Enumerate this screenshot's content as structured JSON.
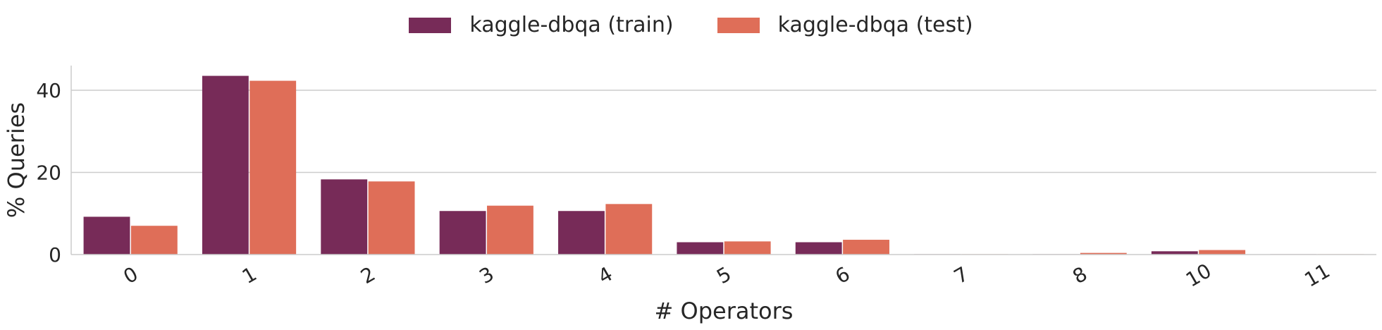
{
  "chart_data": {
    "type": "bar",
    "title": "",
    "xlabel": "# Operators",
    "ylabel": "% Queries",
    "categories": [
      "0",
      "1",
      "2",
      "3",
      "4",
      "5",
      "6",
      "7",
      "8",
      "10",
      "11"
    ],
    "series": [
      {
        "name": "kaggle-dbqa (train)",
        "color": "#772b58",
        "values": [
          9.2,
          43.5,
          18.3,
          10.6,
          10.6,
          3.0,
          3.0,
          0.0,
          0.0,
          0.8,
          0.0
        ]
      },
      {
        "name": "kaggle-dbqa (test)",
        "color": "#df6e58",
        "values": [
          7.0,
          42.3,
          17.8,
          11.9,
          12.3,
          3.2,
          3.6,
          0.0,
          0.4,
          1.1,
          0.0
        ]
      }
    ],
    "ylim": [
      0,
      46
    ],
    "yticks": [
      0,
      20,
      40
    ],
    "grid": true,
    "legend": "top-center"
  }
}
